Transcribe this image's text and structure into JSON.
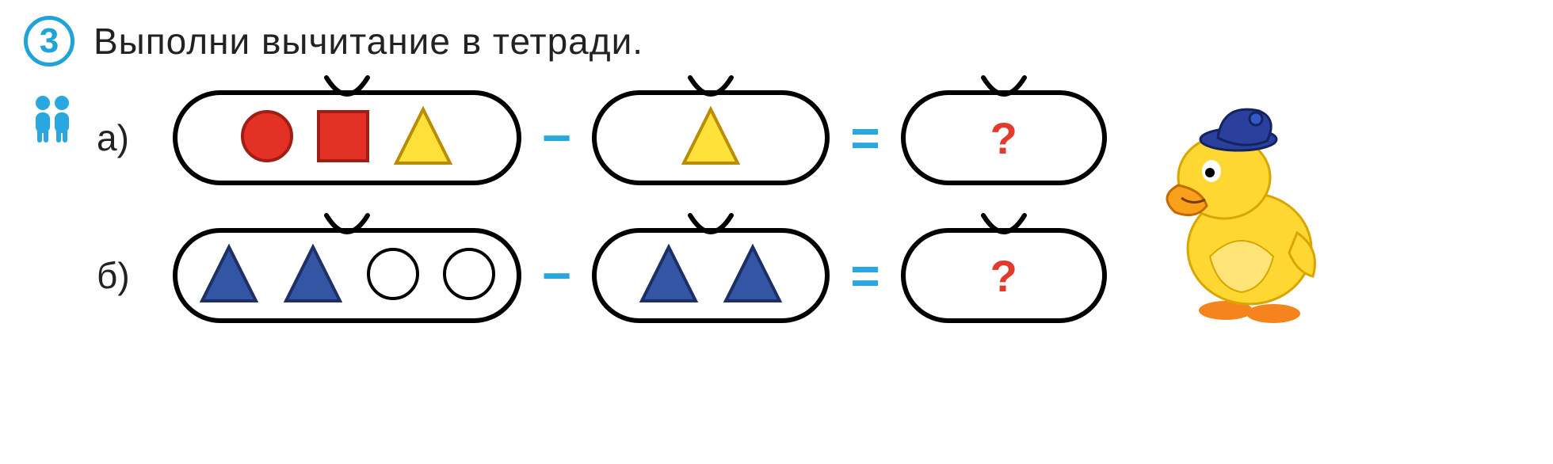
{
  "task": {
    "number": "3",
    "instruction": "Выполни вычитание в тетради."
  },
  "colors": {
    "accent": "#1fa3d8",
    "operator": "#2aa7e0",
    "question": "#e23b2e",
    "border": "#000000",
    "red_fill": "#e33126",
    "red_stroke": "#a11e16",
    "yellow_fill": "#ffe13a",
    "yellow_stroke": "#b88d00",
    "blue_fill": "#3454a4",
    "blue_stroke": "#1d2f66",
    "white_fill": "#ffffff",
    "white_stroke": "#000000",
    "duck_body": "#ffd733",
    "duck_shadow": "#d9a600",
    "duck_hat": "#2b3f9c",
    "duck_beak": "#f58a1f",
    "duck_feet": "#f5841f"
  },
  "problems": [
    {
      "label": "а)",
      "left_bag": {
        "size": "bag-lg",
        "shapes": [
          "circle-red",
          "square-red",
          "triangle-yellow"
        ]
      },
      "operator": "−",
      "right_bag": {
        "size": "bag-md",
        "shapes": [
          "triangle-yellow"
        ]
      },
      "equals": "=",
      "answer_bag": {
        "size": "bag-sm",
        "content": "?"
      }
    },
    {
      "label": "б)",
      "left_bag": {
        "size": "bag-lg",
        "shapes": [
          "triangle-blue",
          "triangle-blue",
          "circle-outline",
          "circle-outline"
        ]
      },
      "operator": "−",
      "right_bag": {
        "size": "bag-md",
        "shapes": [
          "triangle-blue",
          "triangle-blue"
        ]
      },
      "equals": "=",
      "answer_bag": {
        "size": "bag-sm",
        "content": "?"
      }
    }
  ],
  "shapes": {
    "circle-red": {
      "type": "circle",
      "fill": "#e33126",
      "stroke": "#a11e16",
      "size": 70
    },
    "square-red": {
      "type": "square",
      "fill": "#e33126",
      "stroke": "#a11e16",
      "size": 70
    },
    "triangle-yellow": {
      "type": "triangle",
      "fill": "#ffe13a",
      "stroke": "#b88d00",
      "size": 80
    },
    "triangle-blue": {
      "type": "triangle",
      "fill": "#3454a4",
      "stroke": "#1d2f66",
      "size": 80
    },
    "circle-outline": {
      "type": "circle",
      "fill": "#ffffff",
      "stroke": "#000000",
      "size": 70
    }
  },
  "icons": {
    "pair": "pair-work-icon",
    "mascot": "duck-mascot"
  }
}
